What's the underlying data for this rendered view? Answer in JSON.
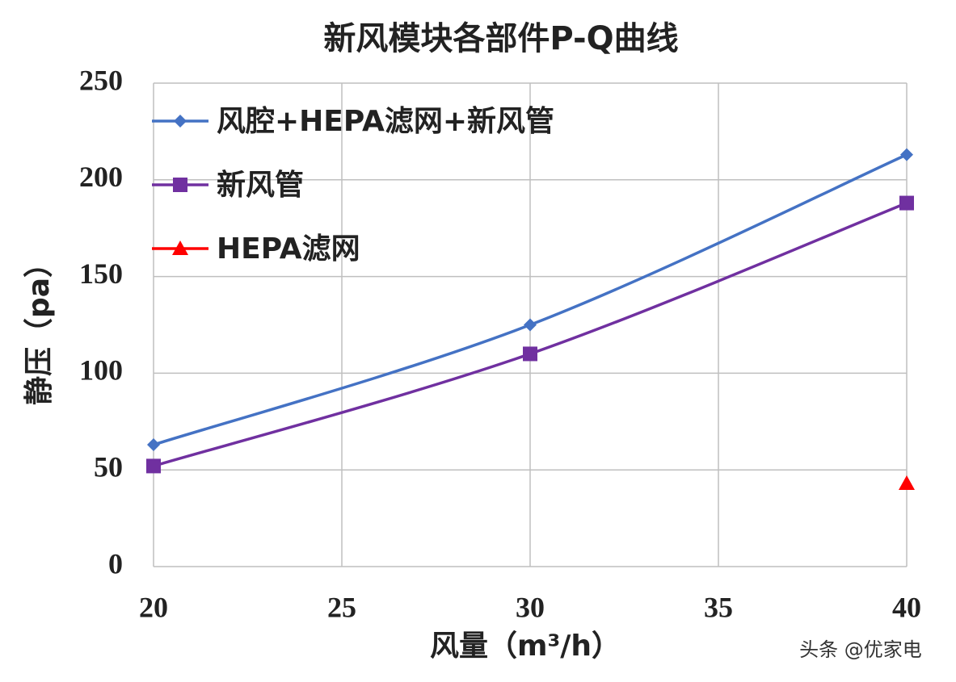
{
  "chart_data": {
    "type": "line",
    "title": "新风模块各部件P-Q曲线",
    "x_label": "风量（m³/h）",
    "y_label": "静压（pa）",
    "x": [
      20,
      30,
      40
    ],
    "series": [
      {
        "name": "风腔+HEPA滤网+新风管",
        "color": "#4472c4",
        "marker": "diamond",
        "values": [
          63,
          125,
          213
        ]
      },
      {
        "name": "新风管",
        "color": "#7030a0",
        "marker": "square",
        "values": [
          52,
          110,
          188
        ]
      },
      {
        "name": "HEPA滤网",
        "color": "#ff0000",
        "marker": "triangle",
        "values": [
          null,
          null,
          43
        ]
      }
    ],
    "xlim": [
      20,
      40
    ],
    "xticks": [
      20,
      25,
      30,
      35,
      40
    ],
    "ylim": [
      0,
      250
    ],
    "yticks": [
      0,
      50,
      100,
      150,
      200,
      250
    ],
    "grid": true,
    "legend": "upper-left",
    "watermark": "头条 @优家电"
  }
}
